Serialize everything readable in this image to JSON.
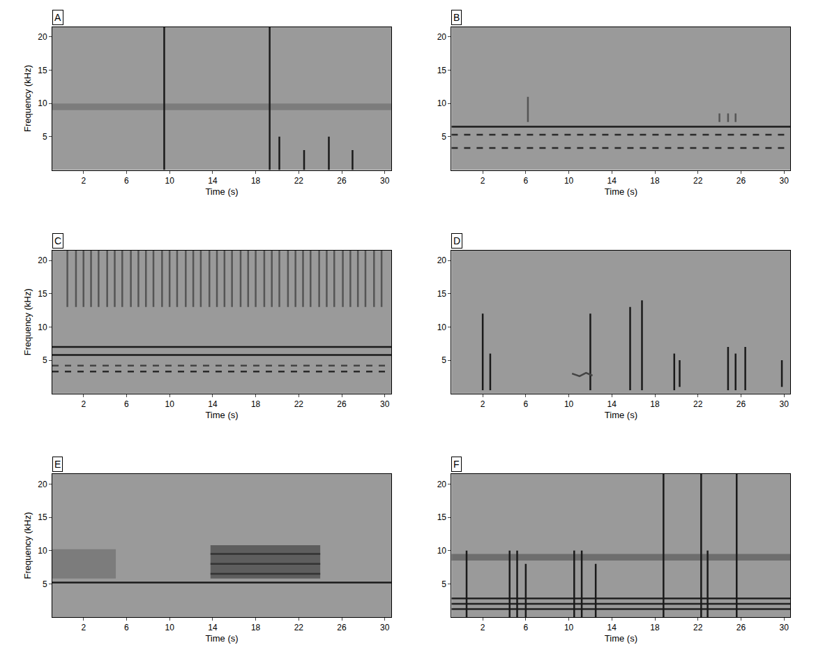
{
  "chart_data": [
    {
      "type": "spectrogram",
      "label": "A",
      "xlabel": "Time (s)",
      "ylabel": "Frequency (kHz)",
      "xlim": [
        -0.9,
        30.6
      ],
      "ylim": [
        0,
        21.5
      ],
      "xticks": [
        2,
        6,
        10,
        14,
        18,
        22,
        26,
        30
      ],
      "yticks": [
        5,
        10,
        15,
        20
      ],
      "series": [
        {
          "type": "area",
          "x": [
            -0.9,
            30.6,
            30.6,
            -0.9
          ],
          "values": [
            9,
            9,
            10,
            10
          ],
          "color": "#7c7c7c"
        },
        {
          "type": "line",
          "x": [
            9.5,
            9.5,
            null,
            19.3,
            19.3,
            null,
            20.2,
            20.2,
            null,
            22.5,
            22.5,
            null,
            24.8,
            24.8,
            null,
            27.0,
            27.0
          ],
          "values": [
            0,
            21.5,
            null,
            0,
            21.5,
            null,
            0,
            5,
            null,
            0,
            3,
            null,
            0,
            5,
            null,
            0,
            3
          ],
          "color": "#1a1a1a",
          "line_style": "solid"
        }
      ]
    },
    {
      "type": "spectrogram",
      "label": "B",
      "xlabel": "Time (s)",
      "xlim": [
        -0.9,
        30.6
      ],
      "ylim": [
        0,
        21.5
      ],
      "xticks": [
        2,
        6,
        10,
        14,
        18,
        22,
        26,
        30
      ],
      "yticks": [
        5,
        10,
        15,
        20
      ],
      "series": [
        {
          "type": "line",
          "x": [
            -0.9,
            30.6
          ],
          "values": [
            6.5,
            6.5
          ],
          "color": "#1a1a1a",
          "line_style": "solid"
        },
        {
          "type": "line",
          "x": [
            -0.9,
            30.6
          ],
          "values": [
            5.3,
            5.3
          ],
          "color": "#2a2a2a",
          "line_style": "dash"
        },
        {
          "type": "line",
          "x": [
            -0.9,
            30.6
          ],
          "values": [
            3.3,
            3.3
          ],
          "color": "#2a2a2a",
          "line_style": "dash"
        },
        {
          "type": "line",
          "x": [
            6.2,
            6.2,
            null,
            24.0,
            24.0,
            null,
            24.8,
            24.8,
            null,
            25.5,
            25.5
          ],
          "values": [
            7.2,
            11,
            null,
            7.2,
            8.5,
            null,
            7.2,
            8.5,
            null,
            7.2,
            8.5
          ],
          "color": "#555555",
          "line_style": "solid"
        }
      ]
    },
    {
      "type": "spectrogram",
      "label": "C",
      "xlabel": "Time (s)",
      "ylabel": "Frequency (kHz)",
      "xlim": [
        -0.9,
        30.6
      ],
      "ylim": [
        0,
        21.5
      ],
      "xticks": [
        2,
        6,
        10,
        14,
        18,
        22,
        26,
        30
      ],
      "yticks": [
        5,
        10,
        15,
        20
      ],
      "series": [
        {
          "type": "line",
          "x": [
            -0.9,
            30.6
          ],
          "values": [
            7.0,
            7.0
          ],
          "color": "#1a1a1a",
          "line_style": "solid"
        },
        {
          "type": "line",
          "x": [
            -0.9,
            30.6
          ],
          "values": [
            5.8,
            5.8
          ],
          "color": "#1a1a1a",
          "line_style": "solid"
        },
        {
          "type": "line",
          "x": [
            -0.9,
            30.6
          ],
          "values": [
            4.2,
            4.2
          ],
          "color": "#444444",
          "line_style": "dash"
        },
        {
          "type": "line",
          "x": [
            -0.9,
            30.6
          ],
          "values": [
            3.3,
            3.3
          ],
          "color": "#2a2a2a",
          "line_style": "dash"
        },
        {
          "type": "line",
          "x": [
            0.5,
            0.5,
            null,
            1.3,
            1.3,
            null,
            2.0,
            2.0,
            null,
            2.7,
            2.7,
            null,
            3.4,
            3.4,
            null,
            4.2,
            4.2,
            null,
            4.9,
            4.9,
            null,
            5.6,
            5.6,
            null,
            6.4,
            6.4,
            null,
            7.1,
            7.1,
            null,
            7.8,
            7.8,
            null,
            8.5,
            8.5,
            null,
            9.3,
            9.3,
            null,
            10.0,
            10.0,
            null,
            10.7,
            10.7,
            null,
            11.5,
            11.5,
            null,
            12.2,
            12.2,
            null,
            12.9,
            12.9,
            null,
            13.7,
            13.7,
            null,
            14.4,
            14.4,
            null,
            15.1,
            15.1,
            null,
            15.8,
            15.8,
            null,
            16.6,
            16.6,
            null,
            17.3,
            17.3,
            null,
            18.0,
            18.0,
            null,
            18.8,
            18.8,
            null,
            19.5,
            19.5,
            null,
            20.2,
            20.2,
            null,
            21.0,
            21.0,
            null,
            21.7,
            21.7,
            null,
            22.4,
            22.4,
            null,
            23.1,
            23.1,
            null,
            23.9,
            23.9,
            null,
            24.6,
            24.6,
            null,
            25.3,
            25.3,
            null,
            26.1,
            26.1,
            null,
            26.8,
            26.8,
            null,
            27.5,
            27.5,
            null,
            28.2,
            28.2,
            null,
            29.0,
            29.0,
            null,
            29.7,
            29.7
          ],
          "values": [
            13,
            21.5,
            null,
            13,
            21.5,
            null,
            13,
            21.5,
            null,
            13,
            21.5,
            null,
            13,
            21.5,
            null,
            13,
            21.5,
            null,
            13,
            21.5,
            null,
            13,
            21.5,
            null,
            13,
            21.5,
            null,
            13,
            21.5,
            null,
            13,
            21.5,
            null,
            13,
            21.5,
            null,
            13,
            21.5,
            null,
            13,
            21.5,
            null,
            13,
            21.5,
            null,
            13,
            21.5,
            null,
            13,
            21.5,
            null,
            13,
            21.5,
            null,
            13,
            21.5,
            null,
            13,
            21.5,
            null,
            13,
            21.5,
            null,
            13,
            21.5,
            null,
            13,
            21.5,
            null,
            13,
            21.5,
            null,
            13,
            21.5,
            null,
            13,
            21.5,
            null,
            13,
            21.5,
            null,
            13,
            21.5,
            null,
            13,
            21.5,
            null,
            13,
            21.5,
            null,
            13,
            21.5,
            null,
            13,
            21.5,
            null,
            13,
            21.5,
            null,
            13,
            21.5,
            null,
            13,
            21.5,
            null,
            13,
            21.5,
            null,
            13,
            21.5,
            null,
            13,
            21.5,
            null,
            13,
            21.5,
            null,
            13,
            21.5,
            null,
            13,
            21.5
          ],
          "color": "#555555",
          "line_style": "solid"
        }
      ]
    },
    {
      "type": "spectrogram",
      "label": "D",
      "xlabel": "Time (s)",
      "xlim": [
        -0.9,
        30.6
      ],
      "ylim": [
        0,
        21.5
      ],
      "xticks": [
        2,
        6,
        10,
        14,
        18,
        22,
        26,
        30
      ],
      "yticks": [
        5,
        10,
        15,
        20
      ],
      "series": [
        {
          "type": "line",
          "x": [
            2.0,
            2.0,
            null,
            2.7,
            2.7,
            null,
            12.0,
            12.0,
            null,
            15.7,
            15.7,
            null,
            16.8,
            16.8,
            null,
            19.8,
            19.8,
            null,
            20.3,
            20.3,
            null,
            24.8,
            24.8,
            null,
            25.5,
            25.5,
            null,
            26.4,
            26.4,
            null,
            29.8,
            29.8
          ],
          "values": [
            0.5,
            12,
            null,
            0.5,
            6,
            null,
            0.5,
            12,
            null,
            0.5,
            13,
            null,
            0.5,
            14,
            null,
            0.5,
            6,
            null,
            1,
            5,
            null,
            0.5,
            7,
            null,
            0.5,
            6,
            null,
            0.5,
            7,
            null,
            1,
            5
          ],
          "color": "#1a1a1a",
          "line_style": "solid"
        },
        {
          "type": "line",
          "x": [
            10.3,
            11.0,
            11.6,
            12.2
          ],
          "values": [
            3.0,
            2.6,
            3.1,
            2.7
          ],
          "color": "#444444",
          "line_style": "solid"
        }
      ]
    },
    {
      "type": "spectrogram",
      "label": "E",
      "xlabel": "Time (s)",
      "ylabel": "Frequency (kHz)",
      "xlim": [
        -0.9,
        30.6
      ],
      "ylim": [
        0,
        21.5
      ],
      "xticks": [
        2,
        6,
        10,
        14,
        18,
        22,
        26,
        30
      ],
      "yticks": [
        5,
        10,
        15,
        20
      ],
      "series": [
        {
          "type": "area",
          "x": [
            -0.9,
            5.0,
            5.0,
            -0.9
          ],
          "values": [
            5.8,
            5.8,
            10.2,
            10.2
          ],
          "color": "#7c7c7c"
        },
        {
          "type": "area",
          "x": [
            13.8,
            24.0,
            24.0,
            13.8
          ],
          "values": [
            5.8,
            5.8,
            10.8,
            10.8
          ],
          "color": "#5e5e5e"
        },
        {
          "type": "line",
          "x": [
            -0.9,
            30.6
          ],
          "values": [
            5.2,
            5.2
          ],
          "color": "#1a1a1a",
          "line_style": "solid"
        },
        {
          "type": "line",
          "x": [
            13.8,
            24.0,
            null,
            13.8,
            24.0,
            null,
            13.8,
            24.0
          ],
          "values": [
            6.5,
            6.5,
            null,
            8.0,
            8.0,
            null,
            9.5,
            9.5
          ],
          "color": "#333333",
          "line_style": "solid"
        }
      ]
    },
    {
      "type": "spectrogram",
      "label": "F",
      "xlabel": "Time (s)",
      "xlim": [
        -0.9,
        30.6
      ],
      "ylim": [
        0,
        21.5
      ],
      "xticks": [
        2,
        6,
        10,
        14,
        18,
        22,
        26,
        30
      ],
      "yticks": [
        5,
        10,
        15,
        20
      ],
      "series": [
        {
          "type": "area",
          "x": [
            -0.9,
            30.6,
            30.6,
            -0.9
          ],
          "values": [
            8.5,
            8.5,
            9.5,
            9.5
          ],
          "color": "#6e6e6e"
        },
        {
          "type": "line",
          "x": [
            -0.9,
            30.6,
            null,
            -0.9,
            30.6,
            null,
            -0.9,
            30.6
          ],
          "values": [
            1.2,
            1.2,
            null,
            2.0,
            2.0,
            null,
            2.8,
            2.8
          ],
          "color": "#222222",
          "line_style": "solid"
        },
        {
          "type": "line",
          "x": [
            0.5,
            0.5,
            null,
            4.5,
            4.5,
            null,
            5.2,
            5.2,
            null,
            6.0,
            6.0,
            null,
            10.5,
            10.5,
            null,
            11.2,
            11.2,
            null,
            12.5,
            12.5,
            null,
            18.8,
            18.8,
            null,
            22.3,
            22.3,
            null,
            22.9,
            22.9,
            null,
            25.6,
            25.6
          ],
          "values": [
            0,
            10,
            null,
            0,
            10,
            null,
            0,
            10,
            null,
            0,
            8,
            null,
            0,
            10,
            null,
            0,
            10,
            null,
            0,
            8,
            null,
            0,
            21.5,
            null,
            0,
            21.5,
            null,
            0,
            10,
            null,
            0,
            21.5
          ],
          "color": "#1a1a1a",
          "line_style": "solid"
        }
      ]
    }
  ]
}
